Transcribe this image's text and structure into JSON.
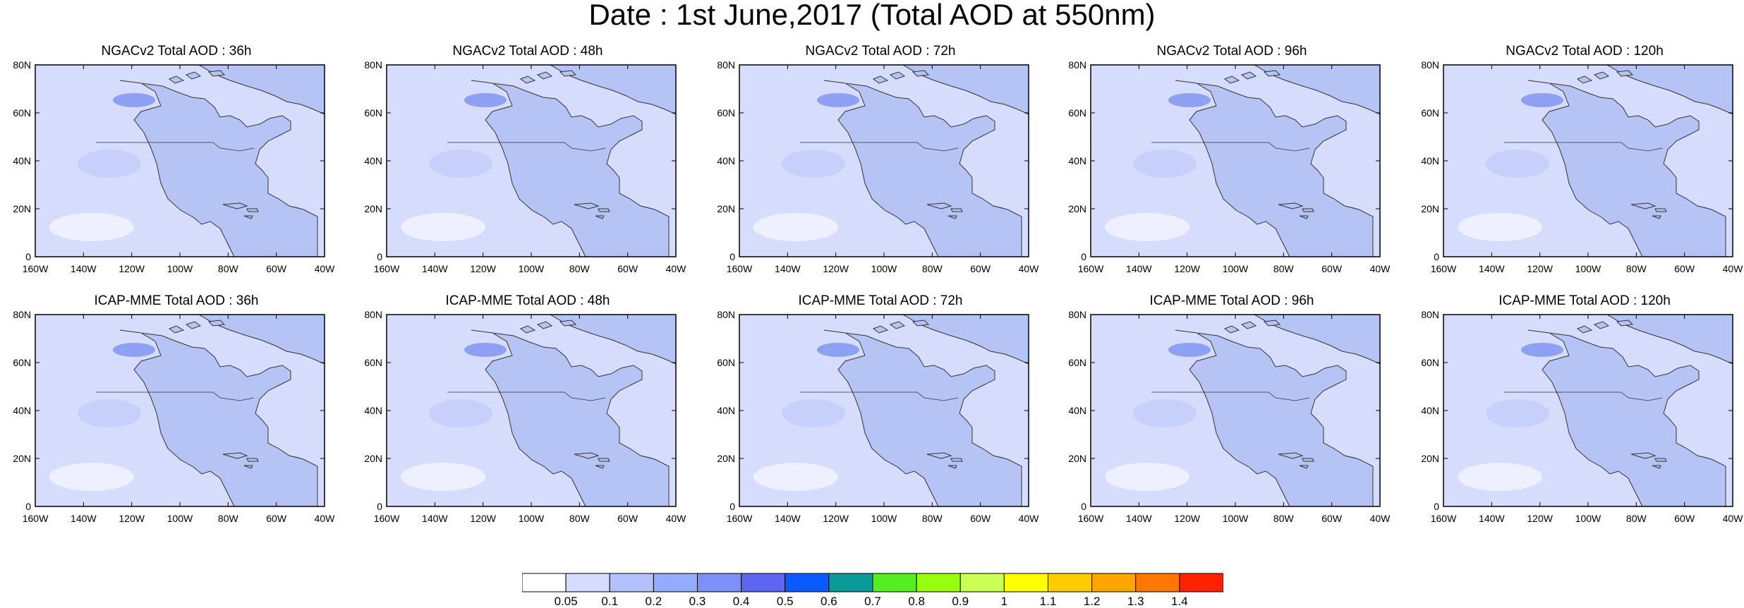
{
  "title": "Date : 1st June,2017 (Total AOD at 550nm)",
  "y_ticks": [
    "80N",
    "60N",
    "40N",
    "20N",
    "0"
  ],
  "x_ticks": [
    "160W",
    "140W",
    "120W",
    "100W",
    "80W",
    "60W",
    "40W"
  ],
  "panels": [
    {
      "title": "NGACv2 Total AOD : 36h"
    },
    {
      "title": "NGACv2 Total AOD : 48h"
    },
    {
      "title": "NGACv2 Total AOD : 72h"
    },
    {
      "title": "NGACv2 Total AOD : 96h"
    },
    {
      "title": "NGACv2 Total AOD : 120h"
    },
    {
      "title": "ICAP-MME Total AOD : 36h"
    },
    {
      "title": "ICAP-MME Total AOD : 48h"
    },
    {
      "title": "ICAP-MME Total AOD : 72h"
    },
    {
      "title": "ICAP-MME Total AOD : 96h"
    },
    {
      "title": "ICAP-MME Total AOD : 120h"
    }
  ],
  "colorbar": {
    "labels": [
      "0.05",
      "0.1",
      "0.2",
      "0.3",
      "0.4",
      "0.5",
      "0.6",
      "0.7",
      "0.8",
      "0.9",
      "1",
      "1.1",
      "1.2",
      "1.3",
      "1.4"
    ],
    "colors": [
      "#ffffff",
      "#d5dcff",
      "#b3c2ff",
      "#94abff",
      "#7d8ff9",
      "#5c66f0",
      "#0a5aff",
      "#0a9a9a",
      "#55ee22",
      "#99ff11",
      "#ccff55",
      "#ffff00",
      "#ffcc00",
      "#ffa500",
      "#ff7700",
      "#ff2200"
    ]
  },
  "map_colors": {
    "ocean": "#d6dcfb",
    "land": "#b6c3f5",
    "coast": "#333333"
  }
}
